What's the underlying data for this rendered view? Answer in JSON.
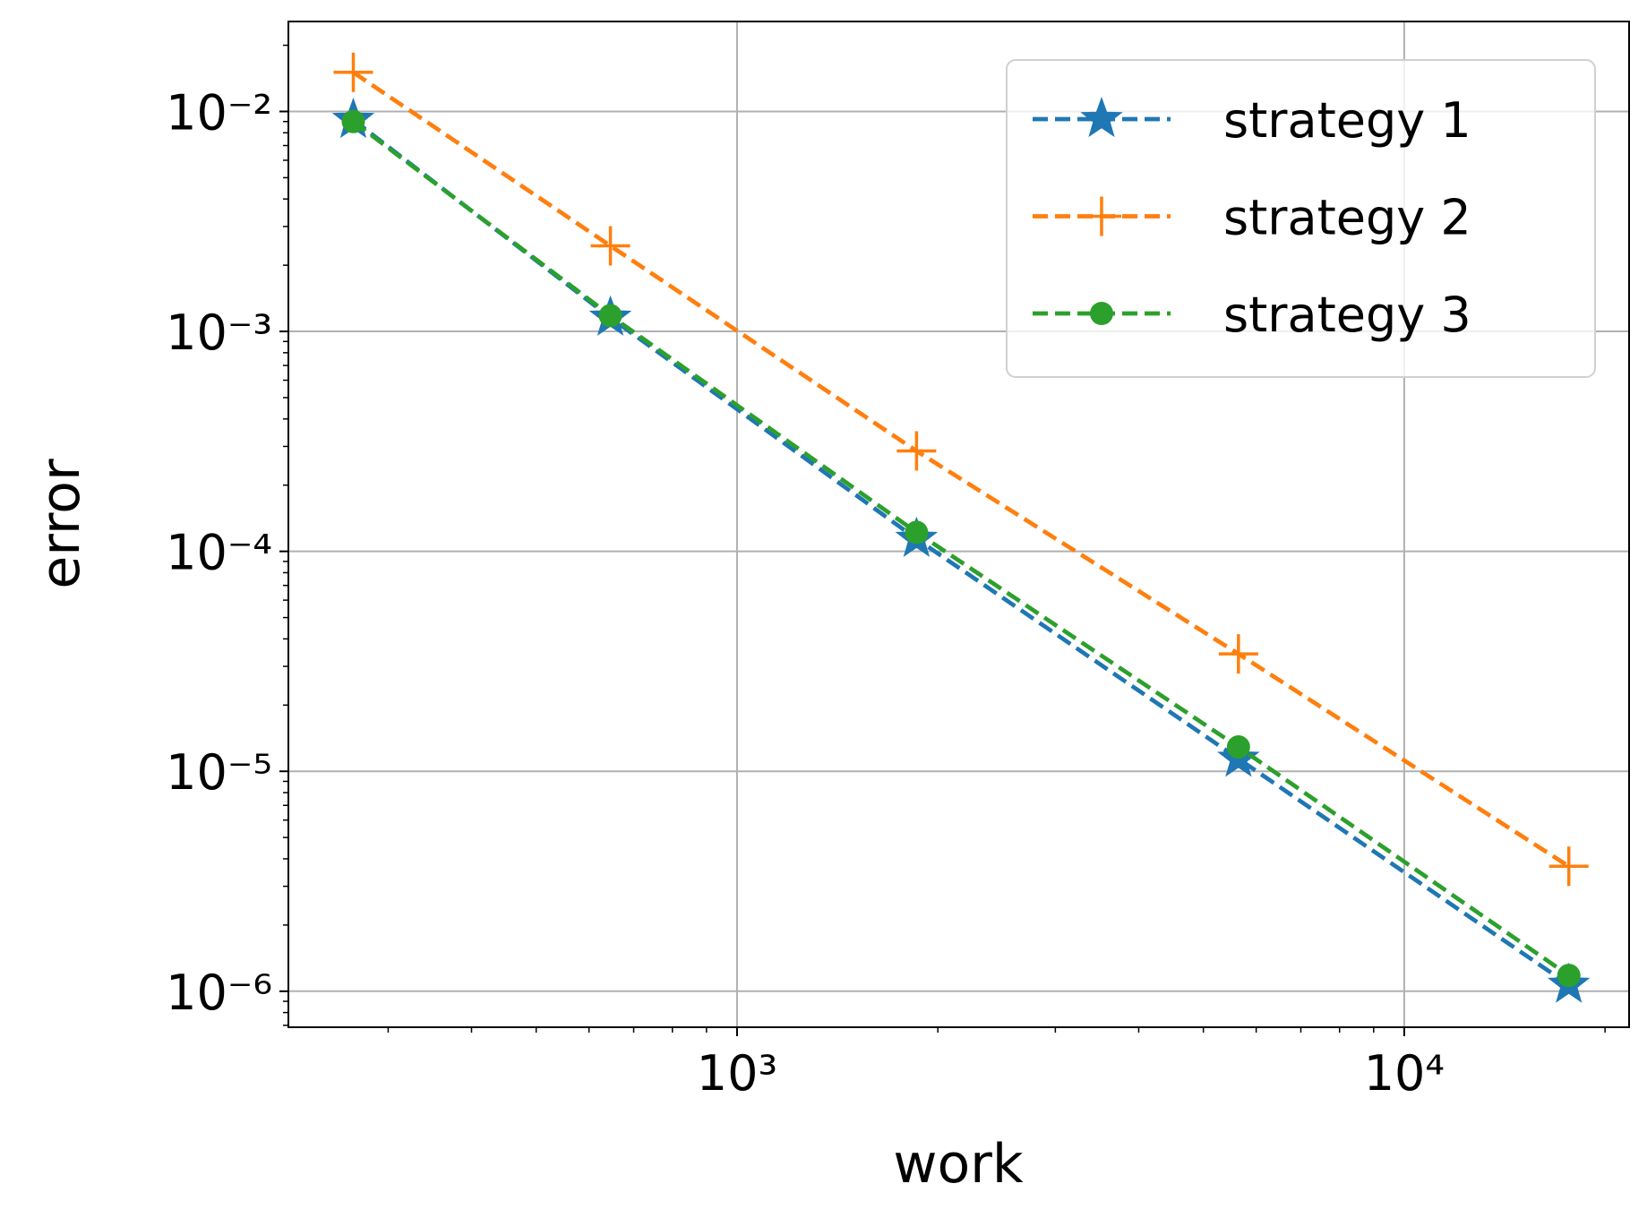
{
  "chart_data": {
    "type": "line",
    "xlabel": "work",
    "ylabel": "error",
    "xscale": "log",
    "yscale": "log",
    "grid": true,
    "legend": "upper right",
    "xlim": [
      212.6,
      21730
    ],
    "ylim": [
      6.86e-07,
      0.02565
    ],
    "xticks": [
      {
        "value": 1000,
        "label": "10³"
      },
      {
        "value": 10000,
        "label": "10⁴"
      }
    ],
    "yticks": [
      {
        "value": 1e-06,
        "label": "10⁻⁶"
      },
      {
        "value": 1e-05,
        "label": "10⁻⁵"
      },
      {
        "value": 0.0001,
        "label": "10⁻⁴"
      },
      {
        "value": 0.001,
        "label": "10⁻³"
      },
      {
        "value": 0.01,
        "label": "10⁻²"
      }
    ],
    "xminorticks": [
      300,
      400,
      500,
      600,
      700,
      800,
      900,
      2000,
      3000,
      4000,
      5000,
      6000,
      7000,
      8000,
      9000,
      20000
    ],
    "yminorticks": [
      7e-07,
      8e-07,
      9e-07,
      2e-06,
      3e-06,
      4e-06,
      5e-06,
      6e-06,
      7e-06,
      8e-06,
      9e-06,
      2e-05,
      3e-05,
      4e-05,
      5e-05,
      6e-05,
      7e-05,
      8e-05,
      9e-05,
      0.0002,
      0.0003,
      0.0004,
      0.0005,
      0.0006,
      0.0007,
      0.0008,
      0.0009,
      0.002,
      0.003,
      0.004,
      0.005,
      0.006,
      0.007,
      0.008,
      0.009,
      0.02
    ],
    "x": [
      266,
      646,
      1858,
      5644,
      17650
    ],
    "series": [
      {
        "name": "strategy 1",
        "color": "#1f77b4",
        "marker": "star",
        "values": [
          0.00915,
          0.001155,
          0.000114,
          1.14e-05,
          1.07e-06
        ]
      },
      {
        "name": "strategy 2",
        "color": "#ff7f0e",
        "marker": "plus",
        "values": [
          0.01506,
          0.00245,
          0.000286,
          3.42e-05,
          3.7e-06
        ]
      },
      {
        "name": "strategy 3",
        "color": "#2ca02c",
        "marker": "circle",
        "values": [
          0.009,
          0.00118,
          0.000122,
          1.29e-05,
          1.18e-06
        ]
      }
    ]
  }
}
